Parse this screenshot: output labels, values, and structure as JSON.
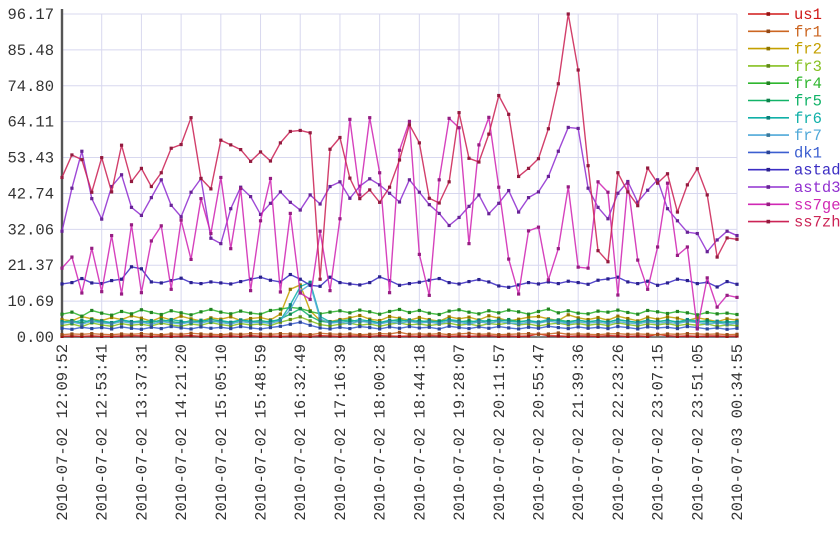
{
  "chart_data": {
    "type": "line",
    "title": "",
    "xlabel": "",
    "ylabel": "",
    "ylim": [
      0,
      96.17
    ],
    "grid": true,
    "legend_position": "right-outside",
    "points_per_tick_interval": 4,
    "colors": {
      "background": "#ffffff",
      "grid": "#d8d8ef",
      "axis": "#555555",
      "tick_text": "#333333"
    },
    "y_tick_labels": [
      "0.00",
      "10.69",
      "21.37",
      "32.06",
      "42.74",
      "53.43",
      "64.11",
      "74.80",
      "85.48",
      "96.17"
    ],
    "x_tick_labels": [
      "2010-07-02 12:09:52",
      "2010-07-02 12:53:41",
      "2010-07-02 13:37:31",
      "2010-07-02 14:21:20",
      "2010-07-02 15:05:10",
      "2010-07-02 15:48:59",
      "2010-07-02 16:32:49",
      "2010-07-02 17:16:39",
      "2010-07-02 18:00:28",
      "2010-07-02 18:44:18",
      "2010-07-02 19:28:07",
      "2010-07-02 20:11:57",
      "2010-07-02 20:55:47",
      "2010-07-02 21:39:36",
      "2010-07-02 22:23:26",
      "2010-07-02 23:07:15",
      "2010-07-02 23:51:05",
      "2010-07-03 00:34:55"
    ],
    "series": [
      {
        "name": "us1",
        "color": "#d01818",
        "values": [
          0.2,
          0.3,
          0.2,
          0.3,
          0.2,
          0.2,
          0.3,
          0.4,
          0.3,
          0.2,
          0.3,
          0.2,
          0.3,
          0.4,
          0.2,
          0.3,
          0.2,
          0.3,
          0.2,
          0.4,
          0.2,
          0.3,
          0.2,
          0.3,
          0.3,
          0.2,
          0.4,
          0.3,
          0.2,
          0.3,
          0.3,
          0.2,
          0.4,
          0.3,
          0.2,
          0.3,
          0.2,
          0.4,
          0.3,
          0.2,
          0.3,
          0.2,
          0.3,
          0.4,
          0.2,
          0.3,
          0.2,
          0.3,
          0.9,
          0.4,
          0.3,
          0.2,
          0.3,
          0.3,
          0.2,
          0.4,
          0.3,
          0.2,
          0.3,
          0.2,
          0.8,
          0.4,
          0.2,
          0.3,
          0.2,
          0.3,
          0.3,
          0.2,
          0.3
        ]
      },
      {
        "name": "fr1",
        "color": "#cc6622",
        "values": [
          0.7,
          0.9,
          0.8,
          1.0,
          0.8,
          0.7,
          0.9,
          0.8,
          1.0,
          0.8,
          0.7,
          0.9,
          0.8,
          1.1,
          0.9,
          0.8,
          0.7,
          0.9,
          0.8,
          1.0,
          0.9,
          0.8,
          1.0,
          0.9,
          0.8,
          0.7,
          1.1,
          0.9,
          0.8,
          0.9,
          0.7,
          0.8,
          1.0,
          0.9,
          1.4,
          0.8,
          0.9,
          0.8,
          1.0,
          0.7,
          0.9,
          1.1,
          0.8,
          0.9,
          0.7,
          0.8,
          0.9,
          1.0,
          0.8,
          0.9,
          1.2,
          0.8,
          0.9,
          0.8,
          0.7,
          0.9,
          1.0,
          0.8,
          0.9,
          0.8,
          0.7,
          0.9,
          0.8,
          1.0,
          0.9,
          0.8,
          0.9,
          0.7,
          0.8
        ]
      },
      {
        "name": "fr2",
        "color": "#c4a000",
        "values": [
          5.2,
          4.8,
          6.1,
          5.4,
          4.9,
          5.8,
          5.2,
          6.3,
          5.6,
          4.7,
          5.9,
          5.1,
          6.2,
          5.4,
          4.8,
          5.7,
          5.3,
          6.0,
          4.9,
          5.5,
          5.8,
          5.1,
          6.8,
          14.2,
          15.5,
          7.8,
          4.9,
          4.6,
          5.2,
          5.7,
          6.4,
          5.3,
          4.9,
          6.1,
          5.6,
          5.0,
          5.8,
          5.2,
          4.7,
          6.0,
          5.4,
          5.9,
          5.1,
          6.3,
          5.6,
          4.8,
          5.3,
          5.9,
          6.1,
          5.4,
          4.9,
          6.6,
          5.7,
          5.2,
          5.8,
          5.0,
          6.2,
          5.5,
          4.8,
          5.9,
          5.3,
          6.0,
          5.6,
          4.9,
          5.7,
          5.2,
          4.6,
          5.4,
          5.0
        ]
      },
      {
        "name": "fr3",
        "color": "#86c020",
        "values": [
          3.4,
          3.9,
          3.1,
          4.2,
          3.6,
          3.2,
          4.0,
          3.5,
          3.8,
          3.3,
          4.1,
          3.6,
          3.2,
          3.9,
          3.5,
          4.3,
          3.7,
          3.3,
          4.0,
          3.6,
          3.9,
          3.4,
          4.4,
          5.2,
          6.0,
          4.8,
          3.7,
          3.3,
          3.8,
          4.1,
          3.5,
          3.9,
          3.2,
          3.8,
          4.2,
          3.6,
          3.9,
          3.4,
          3.8,
          4.1,
          3.5,
          3.9,
          3.3,
          4.0,
          3.7,
          4.2,
          3.6,
          3.9,
          3.3,
          3.8,
          4.1,
          3.6,
          4.0,
          3.5,
          3.9,
          3.4,
          4.2,
          3.7,
          3.3,
          3.9,
          3.6,
          4.0,
          3.4,
          3.8,
          3.5,
          3.9,
          3.2,
          3.6,
          3.4
        ]
      },
      {
        "name": "fr4",
        "color": "#2fb62f",
        "values": [
          6.8,
          7.4,
          6.2,
          7.9,
          7.1,
          6.5,
          7.6,
          6.9,
          8.1,
          7.3,
          6.7,
          7.8,
          7.2,
          6.6,
          7.5,
          8.2,
          7.4,
          6.9,
          7.7,
          7.1,
          6.8,
          7.9,
          8.3,
          8.8,
          8.5,
          7.6,
          6.9,
          7.4,
          7.8,
          7.2,
          8.0,
          7.5,
          6.8,
          7.6,
          8.2,
          7.3,
          7.9,
          7.1,
          6.7,
          7.7,
          8.1,
          7.4,
          6.9,
          7.8,
          7.2,
          8.0,
          7.5,
          6.8,
          7.6,
          8.3,
          7.2,
          7.8,
          7.1,
          6.9,
          7.7,
          7.4,
          8.0,
          7.3,
          6.8,
          7.9,
          7.5,
          7.0,
          7.6,
          7.2,
          6.6,
          7.3,
          6.9,
          7.1,
          6.7
        ]
      },
      {
        "name": "fr5",
        "color": "#12b368",
        "values": [
          4.4,
          4.9,
          4.1,
          5.2,
          4.6,
          4.2,
          5.0,
          4.5,
          4.8,
          4.3,
          5.1,
          4.6,
          4.2,
          4.9,
          4.5,
          5.3,
          4.7,
          4.3,
          5.0,
          4.6,
          4.9,
          4.4,
          5.4,
          6.8,
          8.4,
          6.2,
          4.7,
          4.3,
          4.8,
          5.1,
          4.5,
          4.9,
          4.2,
          4.8,
          5.2,
          4.6,
          4.9,
          4.4,
          4.8,
          5.1,
          4.5,
          4.9,
          4.3,
          5.0,
          4.7,
          5.2,
          4.6,
          4.9,
          4.3,
          4.8,
          5.1,
          4.6,
          5.0,
          4.5,
          4.9,
          4.4,
          5.2,
          4.7,
          4.3,
          4.9,
          4.6,
          5.0,
          4.4,
          4.8,
          4.5,
          4.9,
          4.2,
          4.6,
          4.4
        ]
      },
      {
        "name": "fr6",
        "color": "#10b0a8",
        "values": [
          4.6,
          4.2,
          5.0,
          4.4,
          4.8,
          4.3,
          5.1,
          4.6,
          4.3,
          4.9,
          4.5,
          5.2,
          4.7,
          4.2,
          5.0,
          4.5,
          4.9,
          4.4,
          5.1,
          4.7,
          4.3,
          4.8,
          5.0,
          9.6,
          15.0,
          16.3,
          6.1,
          4.5,
          4.9,
          4.5,
          5.2,
          4.7,
          4.3,
          5.0,
          4.6,
          5.1,
          4.5,
          4.9,
          4.4,
          5.2,
          4.8,
          4.3,
          5.0,
          4.6,
          5.1,
          4.7,
          4.4,
          4.9,
          4.5,
          5.2,
          4.8,
          4.3,
          5.0,
          4.6,
          4.9,
          4.5,
          5.1,
          4.7,
          4.4,
          5.0,
          4.6,
          4.9,
          4.5,
          5.2,
          4.8,
          4.4,
          4.7,
          4.3,
          4.6
        ]
      },
      {
        "name": "fr7",
        "color": "#4fa8d8",
        "values": [
          4.1,
          4.5,
          3.8,
          4.7,
          4.2,
          3.9,
          4.6,
          4.1,
          4.4,
          3.8,
          4.6,
          4.2,
          3.9,
          4.5,
          4.1,
          4.8,
          4.3,
          3.9,
          4.6,
          4.2,
          4.4,
          4.0,
          4.9,
          8.2,
          13.6,
          15.7,
          5.4,
          4.1,
          4.4,
          4.0,
          4.7,
          4.3,
          3.9,
          4.5,
          4.1,
          4.6,
          4.2,
          4.4,
          4.0,
          4.7,
          4.3,
          3.9,
          4.5,
          4.1,
          4.6,
          4.2,
          3.9,
          4.4,
          4.1,
          4.7,
          4.3,
          4.0,
          4.5,
          4.1,
          4.4,
          4.0,
          4.6,
          4.2,
          3.9,
          4.5,
          4.1,
          4.4,
          4.0,
          4.6,
          4.3,
          3.9,
          4.2,
          3.8,
          4.1
        ]
      },
      {
        "name": "dk1",
        "color": "#3c5fd0",
        "values": [
          2.6,
          2.3,
          2.9,
          2.5,
          2.8,
          2.4,
          3.0,
          2.6,
          2.3,
          2.9,
          2.5,
          3.1,
          2.7,
          2.4,
          3.0,
          2.6,
          2.9,
          2.5,
          3.1,
          2.7,
          2.4,
          2.8,
          3.2,
          3.8,
          4.4,
          3.5,
          2.7,
          2.4,
          2.9,
          2.5,
          3.1,
          2.8,
          2.4,
          3.0,
          2.6,
          3.1,
          2.7,
          2.9,
          2.4,
          3.2,
          2.8,
          2.5,
          3.0,
          2.6,
          3.1,
          2.7,
          2.4,
          2.9,
          2.6,
          3.2,
          2.8,
          2.5,
          3.0,
          2.6,
          2.9,
          2.5,
          3.1,
          2.8,
          2.4,
          3.0,
          2.7,
          2.9,
          2.5,
          3.1,
          2.8,
          2.4,
          2.7,
          2.3,
          2.6
        ]
      },
      {
        "name": "astad",
        "color": "#3c2ec4",
        "values": [
          15.8,
          16.2,
          17.4,
          16.1,
          15.9,
          16.8,
          17.2,
          20.9,
          20.3,
          16.4,
          16.1,
          16.8,
          17.5,
          16.2,
          15.9,
          16.4,
          16.1,
          15.8,
          16.5,
          17.2,
          17.8,
          16.9,
          16.4,
          18.6,
          17.2,
          15.4,
          15.1,
          17.8,
          16.2,
          15.8,
          15.5,
          16.2,
          17.9,
          16.8,
          15.4,
          15.9,
          16.3,
          16.9,
          17.4,
          16.2,
          15.8,
          16.5,
          17.1,
          16.4,
          15.2,
          14.8,
          15.5,
          16.2,
          15.8,
          16.4,
          15.9,
          16.6,
          16.2,
          15.7,
          16.9,
          17.3,
          17.8,
          16.4,
          15.9,
          16.6,
          15.4,
          16.1,
          17.2,
          16.8,
          15.9,
          16.3,
          14.9,
          16.5,
          15.7
        ]
      },
      {
        "name": "astd3",
        "color": "#9130d0",
        "values": [
          31.5,
          44.3,
          55.3,
          41.2,
          35.1,
          44.8,
          48.3,
          38.6,
          36.2,
          41.5,
          46.8,
          39.2,
          35.8,
          43.1,
          47.2,
          29.4,
          27.8,
          38.2,
          44.6,
          41.8,
          36.5,
          39.8,
          43.2,
          40.1,
          37.8,
          42.3,
          39.6,
          44.8,
          46.2,
          41.3,
          44.9,
          47.1,
          45.3,
          42.8,
          40.2,
          46.8,
          43.1,
          39.4,
          36.8,
          33.2,
          35.6,
          38.9,
          42.3,
          36.7,
          39.8,
          43.6,
          37.2,
          41.5,
          43.2,
          47.8,
          55.3,
          62.4,
          62.1,
          44.3,
          38.6,
          35.2,
          42.8,
          46.3,
          40.1,
          43.7,
          46.8,
          38.2,
          34.6,
          31.2,
          30.8,
          25.4,
          28.9,
          31.5,
          30.2
        ]
      },
      {
        "name": "ss7ge",
        "color": "#d028b4",
        "values": [
          20.5,
          23.8,
          13.1,
          26.4,
          13.5,
          30.2,
          12.8,
          33.4,
          13.2,
          28.6,
          33.1,
          14.2,
          34.8,
          23.1,
          41.2,
          30.8,
          47.5,
          26.3,
          44.2,
          13.8,
          34.6,
          47.2,
          13.4,
          36.8,
          13.1,
          11.2,
          31.5,
          13.8,
          35.2,
          64.8,
          42.3,
          65.3,
          48.9,
          13.2,
          55.6,
          64.2,
          24.6,
          12.4,
          46.8,
          65.1,
          62.3,
          27.8,
          57.2,
          65.4,
          44.6,
          23.2,
          12.8,
          31.6,
          32.7,
          17.0,
          26.3,
          44.7,
          20.8,
          20.5,
          46.2,
          43.1,
          12.5,
          45.8,
          22.9,
          14.2,
          26.8,
          45.8,
          24.3,
          26.8,
          2.4,
          17.6,
          8.9,
          12.4,
          11.8
        ]
      },
      {
        "name": "ss7zh",
        "color": "#cc2456",
        "values": [
          47.5,
          54.2,
          52.8,
          43.1,
          53.4,
          43.2,
          57.1,
          46.3,
          50.2,
          44.8,
          48.9,
          56.2,
          57.3,
          65.3,
          47.2,
          44.1,
          58.6,
          57.2,
          55.8,
          52.3,
          55.1,
          52.4,
          57.8,
          61.2,
          61.5,
          60.8,
          17.2,
          55.9,
          59.4,
          47.3,
          41.2,
          43.8,
          40.1,
          44.6,
          52.7,
          63.2,
          57.8,
          41.3,
          39.9,
          46.2,
          66.8,
          53.2,
          52.1,
          60.4,
          71.9,
          66.3,
          47.8,
          50.2,
          53.1,
          62.0,
          75.4,
          96.17,
          79.5,
          51.0,
          25.7,
          22.4,
          48.9,
          43.2,
          39.1,
          50.3,
          45.8,
          48.6,
          37.2,
          45.3,
          50.1,
          42.3,
          23.8,
          29.5,
          29.1
        ]
      }
    ]
  }
}
